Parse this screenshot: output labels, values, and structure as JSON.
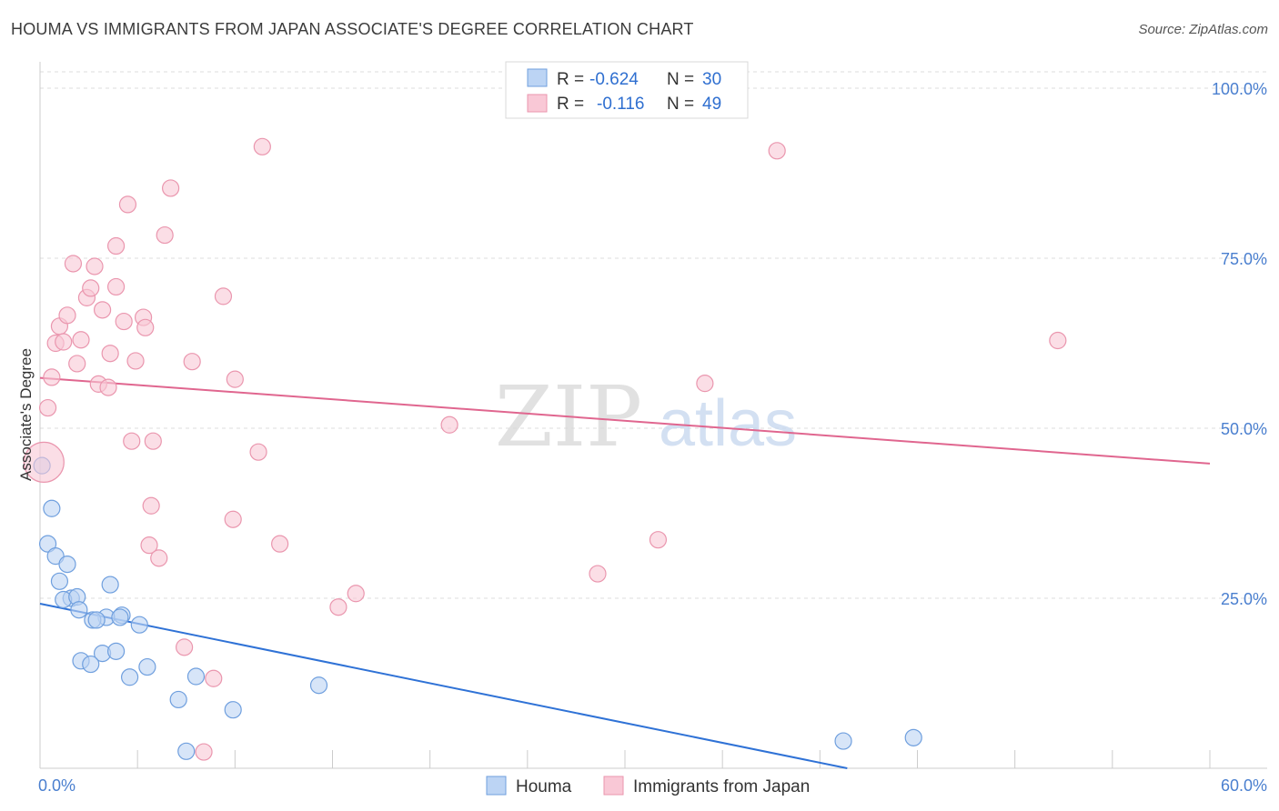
{
  "title": "HOUMA VS IMMIGRANTS FROM JAPAN ASSOCIATE'S DEGREE CORRELATION CHART",
  "source": "Source: ZipAtlas.com",
  "watermark": {
    "zip": "ZIP",
    "atlas": "atlas"
  },
  "colors": {
    "blue_fill": "#bcd4f4",
    "blue_stroke": "#6f9fde",
    "blue_line": "#2f72d6",
    "pink_fill": "#f9c8d6",
    "pink_stroke": "#ea96ae",
    "pink_line": "#e0668f",
    "grid": "#dddddd",
    "axis_label": "#4a7fcf"
  },
  "chart_data": {
    "type": "scatter",
    "title": "HOUMA VS IMMIGRANTS FROM JAPAN ASSOCIATE'S DEGREE CORRELATION CHART",
    "xlabel": "",
    "ylabel": "Associate's Degree",
    "xlim": [
      0,
      60
    ],
    "ylim": [
      0,
      100
    ],
    "x_tick_labels": [
      "0.0%",
      "60.0%"
    ],
    "y_tick_labels": [
      "100.0%",
      "75.0%",
      "50.0%",
      "25.0%"
    ],
    "y_tick_values": [
      100,
      75,
      50,
      25
    ],
    "legend": {
      "r_label": "R =",
      "n_label": "N =",
      "entries": [
        {
          "series": "Houma",
          "r": "-0.624",
          "n": "30"
        },
        {
          "series": "Immigrants from Japan",
          "r": "-0.116",
          "n": "49"
        }
      ]
    },
    "series": [
      {
        "name": "Houma",
        "color": "blue",
        "points": [
          [
            0.1,
            44.5
          ],
          [
            0.6,
            38.2
          ],
          [
            0.4,
            33.0
          ],
          [
            0.8,
            31.2
          ],
          [
            1.4,
            30.0
          ],
          [
            1.0,
            27.5
          ],
          [
            3.6,
            27.0
          ],
          [
            1.6,
            25.0
          ],
          [
            1.2,
            24.8
          ],
          [
            1.9,
            25.2
          ],
          [
            2.0,
            23.3
          ],
          [
            4.2,
            22.5
          ],
          [
            3.4,
            22.2
          ],
          [
            4.1,
            22.2
          ],
          [
            2.7,
            21.8
          ],
          [
            2.9,
            21.8
          ],
          [
            5.1,
            21.1
          ],
          [
            3.2,
            16.9
          ],
          [
            3.9,
            17.2
          ],
          [
            2.1,
            15.8
          ],
          [
            2.6,
            15.3
          ],
          [
            5.5,
            14.9
          ],
          [
            4.6,
            13.4
          ],
          [
            8.0,
            13.5
          ],
          [
            14.3,
            12.2
          ],
          [
            7.1,
            10.1
          ],
          [
            9.9,
            8.6
          ],
          [
            7.5,
            2.5
          ],
          [
            41.2,
            4.0
          ],
          [
            44.8,
            4.5
          ]
        ]
      },
      {
        "name": "Immigrants from Japan",
        "color": "pink",
        "points": [
          [
            0.2,
            45.0
          ],
          [
            0.4,
            53.0
          ],
          [
            0.6,
            57.5
          ],
          [
            0.8,
            62.5
          ],
          [
            1.0,
            65.0
          ],
          [
            1.2,
            62.7
          ],
          [
            1.4,
            66.6
          ],
          [
            1.9,
            59.5
          ],
          [
            2.1,
            63.0
          ],
          [
            1.7,
            74.2
          ],
          [
            2.4,
            69.2
          ],
          [
            2.6,
            70.6
          ],
          [
            2.8,
            73.8
          ],
          [
            3.2,
            67.4
          ],
          [
            3.0,
            56.5
          ],
          [
            3.5,
            56.0
          ],
          [
            3.6,
            61.0
          ],
          [
            3.9,
            70.8
          ],
          [
            3.9,
            76.8
          ],
          [
            4.3,
            65.7
          ],
          [
            4.5,
            82.9
          ],
          [
            4.9,
            59.9
          ],
          [
            5.3,
            66.3
          ],
          [
            5.4,
            64.8
          ],
          [
            4.7,
            48.1
          ],
          [
            5.8,
            48.1
          ],
          [
            5.7,
            38.6
          ],
          [
            5.6,
            32.8
          ],
          [
            6.1,
            30.9
          ],
          [
            6.4,
            78.4
          ],
          [
            6.7,
            85.3
          ],
          [
            7.4,
            17.8
          ],
          [
            7.8,
            59.8
          ],
          [
            8.4,
            2.4
          ],
          [
            8.9,
            13.2
          ],
          [
            9.4,
            69.4
          ],
          [
            10.0,
            57.2
          ],
          [
            9.9,
            36.6
          ],
          [
            11.2,
            46.5
          ],
          [
            11.4,
            91.4
          ],
          [
            12.3,
            33.0
          ],
          [
            15.3,
            23.7
          ],
          [
            16.2,
            25.7
          ],
          [
            21.0,
            50.5
          ],
          [
            28.6,
            28.6
          ],
          [
            31.7,
            33.6
          ],
          [
            34.1,
            56.6
          ],
          [
            37.8,
            90.8
          ],
          [
            52.2,
            62.9
          ]
        ]
      }
    ],
    "trend_lines": [
      {
        "series": "Houma",
        "x": [
          0,
          41.4
        ],
        "y": [
          24.2,
          0
        ]
      },
      {
        "series": "Immigrants from Japan",
        "x": [
          0,
          60
        ],
        "y": [
          57.4,
          44.8
        ]
      }
    ]
  }
}
